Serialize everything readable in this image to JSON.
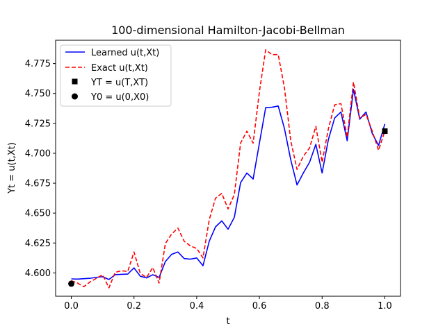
{
  "chart_data": {
    "type": "line",
    "title": "100-dimensional Hamilton-Jacobi-Bellman",
    "xlabel": "t",
    "ylabel": "Yt = u(t,Xt)",
    "xlim": [
      -0.05,
      1.05
    ],
    "ylim": [
      4.5805,
      4.7945
    ],
    "xticks": [
      0.0,
      0.2,
      0.4,
      0.6,
      0.8,
      1.0
    ],
    "xtick_labels": [
      "0.0",
      "0.2",
      "0.4",
      "0.6",
      "0.8",
      "1.0"
    ],
    "yticks": [
      4.6,
      4.625,
      4.65,
      4.675,
      4.7,
      4.725,
      4.75,
      4.775
    ],
    "ytick_labels": [
      "4.600",
      "4.625",
      "4.650",
      "4.675",
      "4.700",
      "4.725",
      "4.750",
      "4.775"
    ],
    "grid": false,
    "legend_position": "top-left",
    "x": [
      0.0,
      0.02,
      0.04,
      0.06,
      0.08,
      0.1,
      0.12,
      0.14,
      0.16,
      0.18,
      0.2,
      0.22,
      0.24,
      0.26,
      0.28,
      0.3,
      0.32,
      0.34,
      0.36,
      0.38,
      0.4,
      0.42,
      0.44,
      0.46,
      0.48,
      0.5,
      0.52,
      0.54,
      0.56,
      0.58,
      0.6,
      0.62,
      0.64,
      0.66,
      0.68,
      0.7,
      0.72,
      0.74,
      0.76,
      0.78,
      0.8,
      0.82,
      0.84,
      0.86,
      0.88,
      0.9,
      0.92,
      0.94,
      0.96,
      0.98,
      1.0
    ],
    "series": [
      {
        "name": "Learned u(t,Xt)",
        "color": "#0000ff",
        "style": "solid",
        "values": [
          4.595,
          4.5948,
          4.5952,
          4.5955,
          4.5963,
          4.5968,
          4.5945,
          4.5985,
          4.5988,
          4.599,
          4.6042,
          4.5972,
          4.5958,
          4.5985,
          4.5962,
          4.6095,
          4.6155,
          4.6175,
          4.612,
          4.6115,
          4.6125,
          4.606,
          4.6265,
          4.6385,
          4.6435,
          4.6365,
          4.6465,
          4.6755,
          4.6835,
          4.6785,
          4.7085,
          4.7382,
          4.7385,
          4.7395,
          4.7205,
          4.6945,
          4.6735,
          4.6835,
          4.6925,
          4.7075,
          4.6835,
          4.7115,
          4.7295,
          4.7345,
          4.7105,
          4.7535,
          4.7285,
          4.7345,
          4.7165,
          4.7065,
          4.7245
        ]
      },
      {
        "name": "Exact u(t,Xt)",
        "color": "#ff0000",
        "style": "dashed",
        "values": [
          4.5935,
          4.5915,
          4.5885,
          4.5925,
          4.5955,
          4.5985,
          4.5875,
          4.6005,
          4.6018,
          4.6012,
          4.6175,
          4.5995,
          4.5962,
          4.6045,
          4.5915,
          4.6245,
          4.6325,
          4.6375,
          4.6265,
          4.6225,
          4.6205,
          4.6125,
          4.6445,
          4.6625,
          4.6665,
          4.6535,
          4.6655,
          4.7085,
          4.7185,
          4.7085,
          4.7515,
          4.7865,
          4.7825,
          4.7825,
          4.7545,
          4.7105,
          4.6865,
          4.6975,
          4.7045,
          4.7225,
          4.6925,
          4.7205,
          4.7405,
          4.7415,
          4.7135,
          4.7595,
          4.7295,
          4.7325,
          4.7185,
          4.7025,
          4.7185
        ]
      }
    ],
    "markers": [
      {
        "name": "YT = u(T,XT)",
        "shape": "square",
        "x": 1.0,
        "y": 4.7185,
        "color": "#000000"
      },
      {
        "name": "Y0 = u(0,X0)",
        "shape": "circle",
        "x": 0.0,
        "y": 4.591,
        "color": "#000000"
      }
    ]
  }
}
